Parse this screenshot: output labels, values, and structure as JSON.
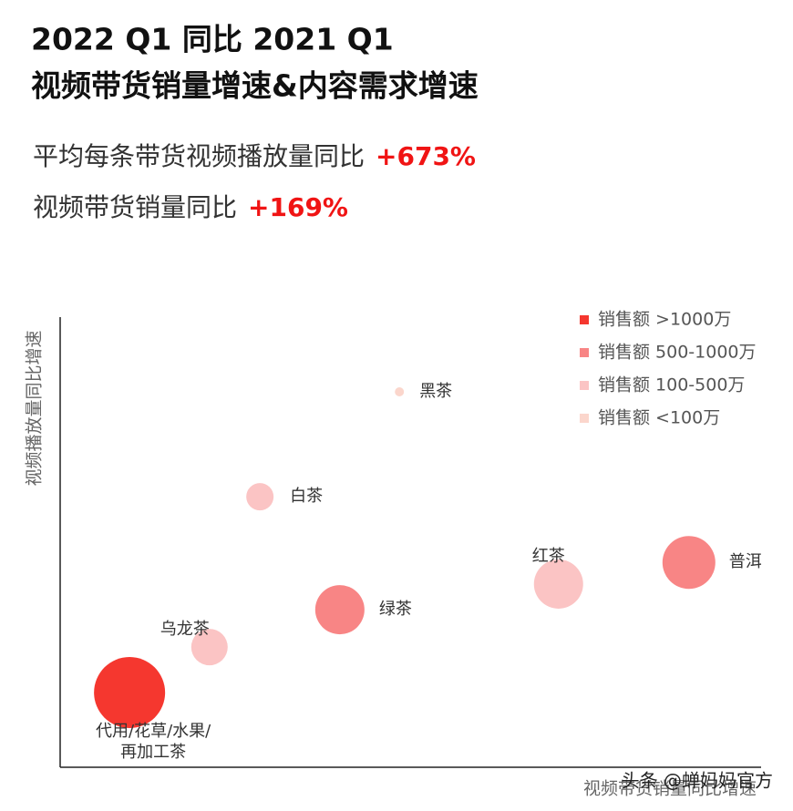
{
  "header": {
    "title_lines": [
      "2022 Q1 同比 2021 Q1",
      "视频带货销量增速&内容需求增速"
    ],
    "stats": [
      {
        "text": "平均每条带货视频播放量同比",
        "value_label": "+673%"
      },
      {
        "text": "视频带货销量同比",
        "value_label": "+169%"
      }
    ]
  },
  "chart_data": {
    "type": "bubble",
    "y_label": "视频播放量同比增速",
    "x_label": "视频带货销量同比增速",
    "xlim": [
      0,
      100
    ],
    "ylim": [
      0,
      100
    ],
    "series": [
      {
        "name": "销售额 >1000万",
        "color": "#f5372f",
        "x": [
          9.9
        ],
        "values": [
          16.6
        ],
        "sizes": [
          39
        ],
        "labels": [
          [
            "代用/花草/水果/",
            "再加工茶"
          ]
        ]
      },
      {
        "name": "销售额 500-1000万",
        "color": "#f88585",
        "x": [
          89.7,
          39.9
        ],
        "values": [
          45.5,
          35.0
        ],
        "sizes": [
          29,
          27
        ],
        "labels": [
          [
            "普洱"
          ],
          [
            "绿茶"
          ]
        ]
      },
      {
        "name": "销售额 100-500万",
        "color": "#fbc4c4",
        "x": [
          71.1,
          21.3,
          28.5
        ],
        "values": [
          40.7,
          26.7,
          60.1
        ],
        "sizes": [
          27,
          20,
          15
        ],
        "labels": [
          [
            "红茶"
          ],
          [
            "乌龙茶"
          ],
          [
            "白茶"
          ]
        ]
      },
      {
        "name": "销售额 <100万",
        "color": "#fbd6cc",
        "x": [
          48.4
        ],
        "values": [
          83.4
        ],
        "sizes": [
          5
        ],
        "labels": [
          [
            "黑茶"
          ]
        ]
      }
    ]
  },
  "watermark": "头条 @蝉妈妈官方"
}
